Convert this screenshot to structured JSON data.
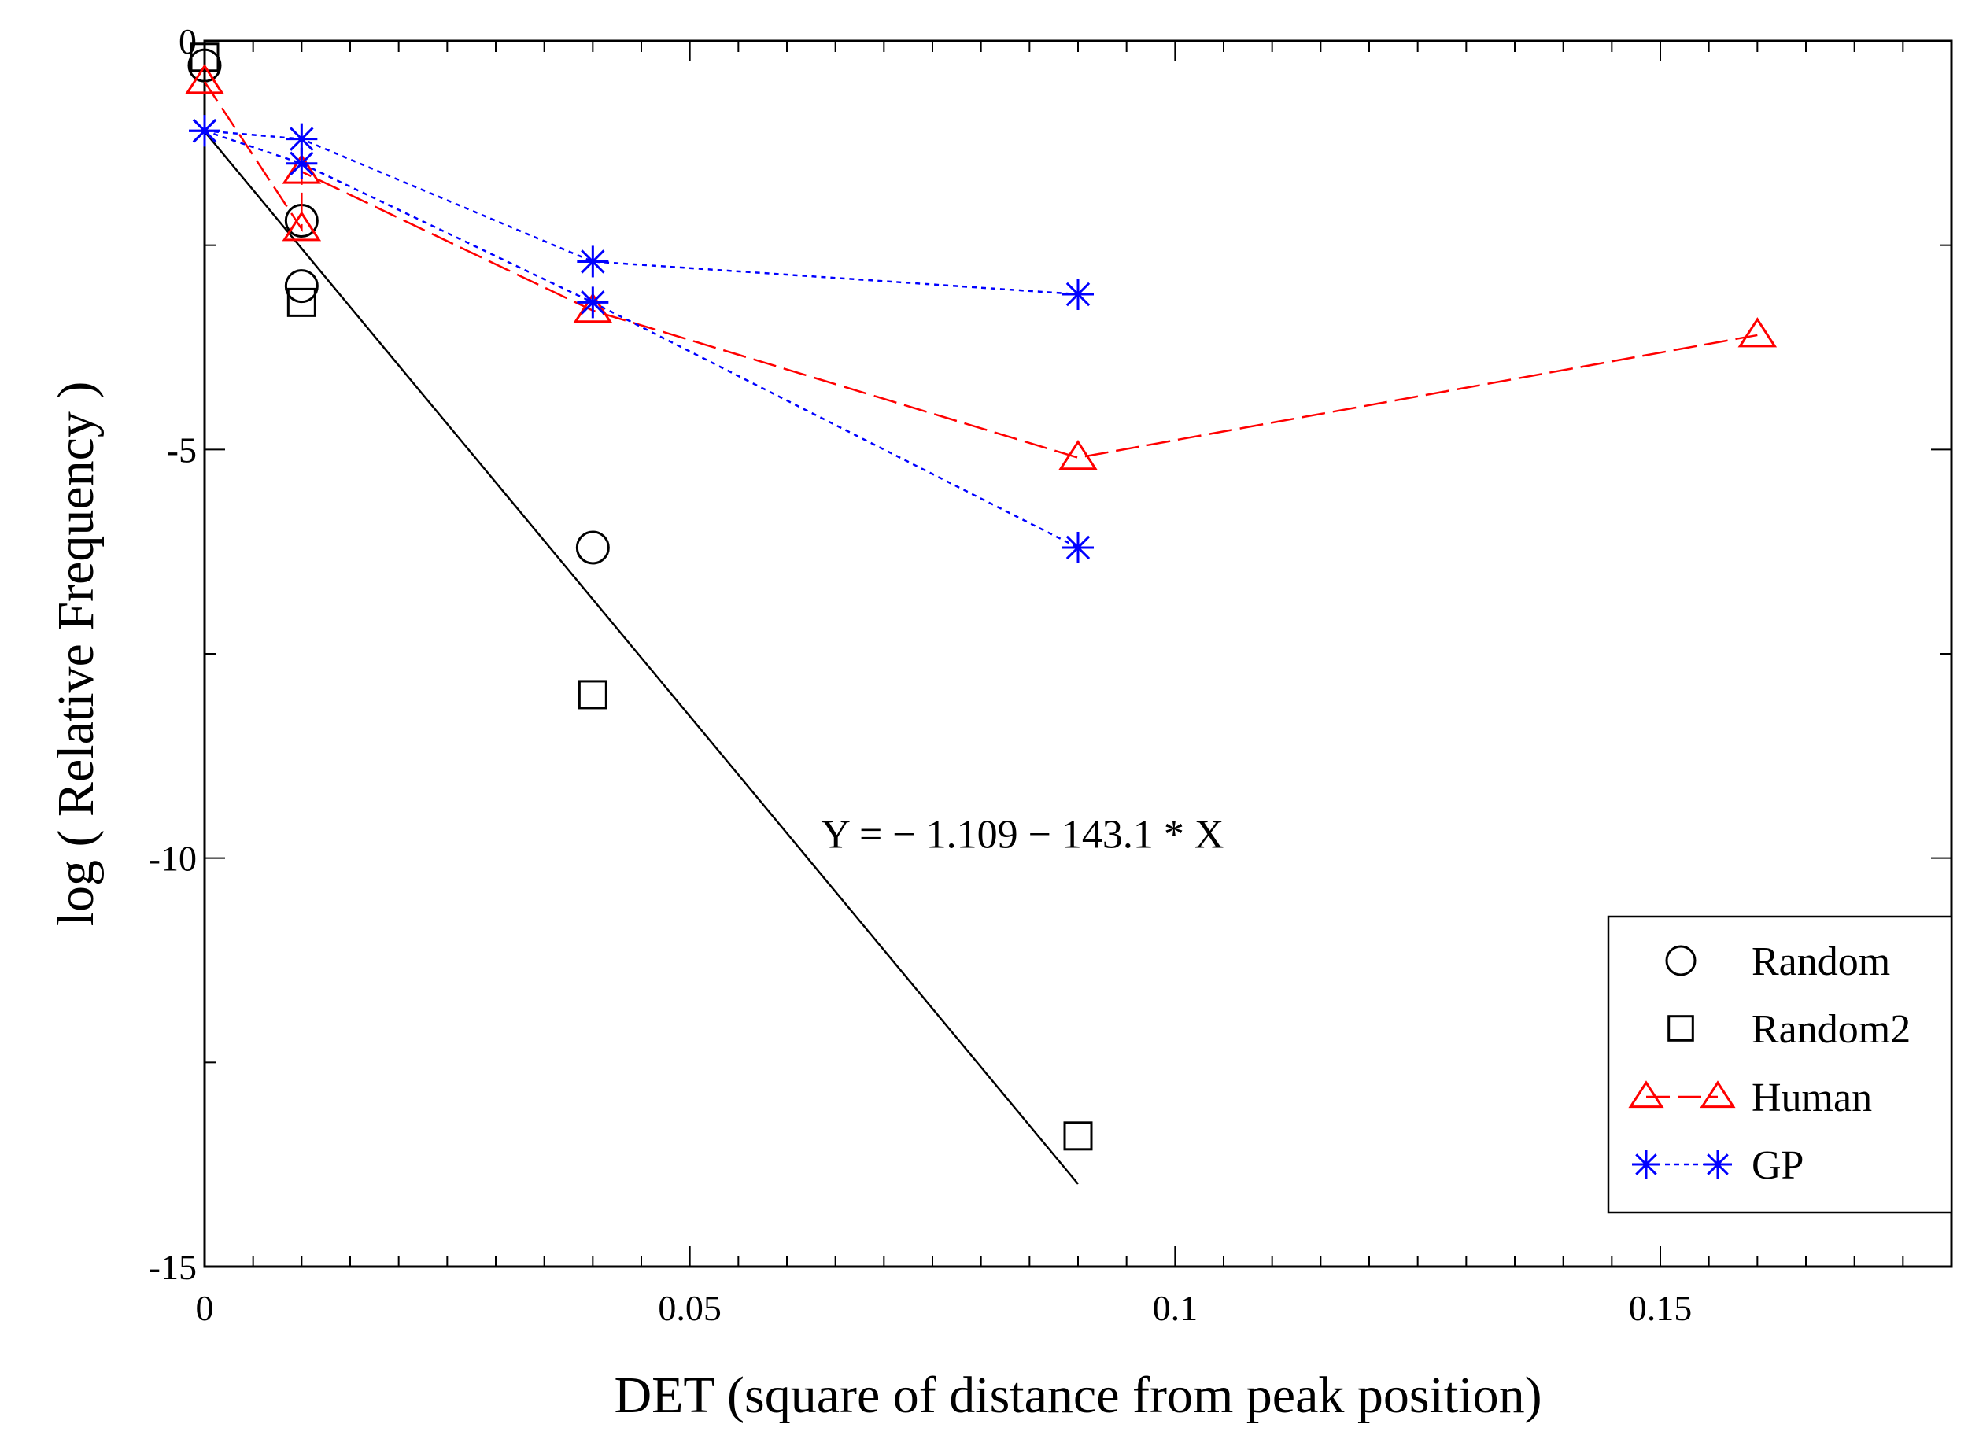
{
  "chart_data": {
    "type": "scatter",
    "title": "",
    "xlabel": "DET (square of distance from peak position)",
    "ylabel": "log ( Relative Frequency )",
    "xlim": [
      0,
      0.18
    ],
    "ylim": [
      -15,
      0
    ],
    "x_major_ticks": [
      0,
      0.05,
      0.1,
      0.15
    ],
    "x_tick_labels": [
      "0",
      "0.05",
      "0.1",
      "0.15"
    ],
    "x_minor_step": 0.005,
    "y_major_ticks": [
      -15,
      -10,
      -5,
      0
    ],
    "y_tick_labels": [
      "-15",
      "-10",
      "-5",
      "0"
    ],
    "y_minor_step": 2.5,
    "grid": false,
    "legend_position": "bottom-right",
    "series": [
      {
        "name": "Random",
        "marker": "circle",
        "line": "none",
        "color": "#000000",
        "points": [
          [
            0,
            -0.3
          ],
          [
            0.01,
            -2.2
          ],
          [
            0.01,
            -3.0
          ],
          [
            0.04,
            -6.2
          ]
        ]
      },
      {
        "name": "Random2",
        "marker": "square",
        "line": "none",
        "color": "#000000",
        "points": [
          [
            0,
            -0.2
          ],
          [
            0.01,
            -3.2
          ],
          [
            0.04,
            -8.0
          ],
          [
            0.09,
            -13.4
          ]
        ]
      },
      {
        "name": "Human",
        "marker": "triangle",
        "line": "dashed",
        "color": "#ff0000",
        "points": [
          [
            0,
            -0.5
          ],
          [
            0.01,
            -2.3
          ],
          [
            0.01,
            -1.6
          ],
          [
            0.04,
            -3.3
          ],
          [
            0.09,
            -5.1
          ],
          [
            0.16,
            -3.6
          ]
        ]
      },
      {
        "name": "GP",
        "marker": "star",
        "line": "dotted",
        "color": "#0000ff",
        "points": [
          [
            0,
            -1.1
          ],
          [
            0.01,
            -1.2
          ],
          [
            0.04,
            -2.7
          ],
          [
            0.09,
            -3.1
          ]
        ],
        "points_2": [
          [
            0,
            -1.1
          ],
          [
            0.01,
            -1.5
          ],
          [
            0.04,
            -3.2
          ],
          [
            0.09,
            -6.2
          ]
        ]
      }
    ],
    "fit_line": {
      "intercept": -1.109,
      "slope": -143.1,
      "x_range": [
        0,
        0.09
      ],
      "color": "#000000",
      "label": "Y = − 1.109 − 143.1 * X",
      "label_anchor": [
        0.07,
        -9.7
      ]
    }
  }
}
